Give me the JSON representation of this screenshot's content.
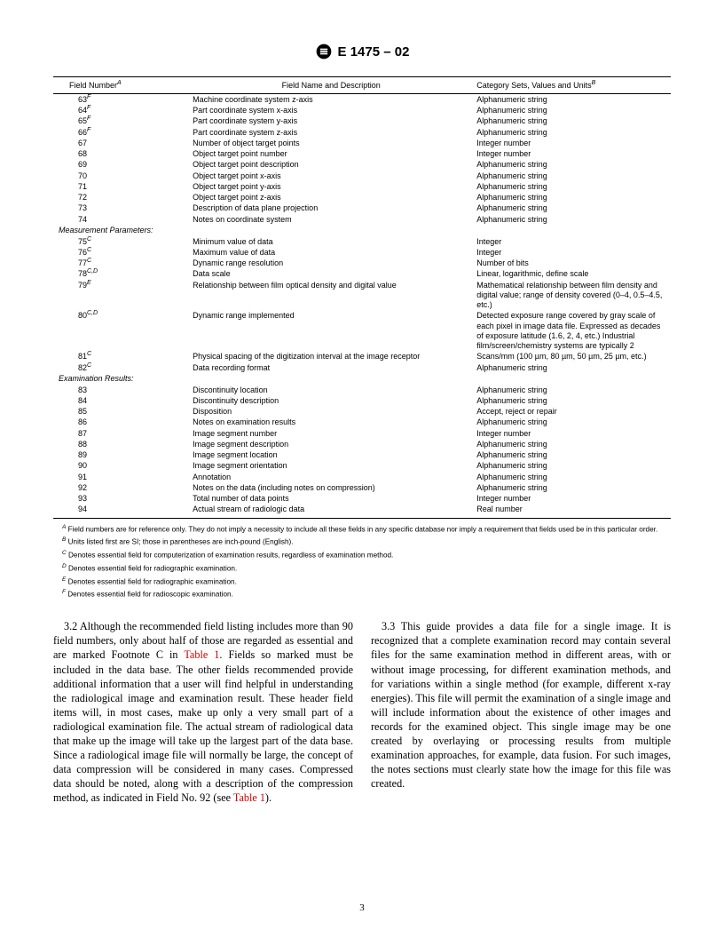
{
  "header": {
    "standard": "E 1475 – 02"
  },
  "table": {
    "headers": {
      "col1": "Field Number",
      "col1_sup": "A",
      "col2": "Field Name and Description",
      "col3": "Category Sets, Values and Units",
      "col3_sup": "B"
    },
    "rows": [
      {
        "num": "63",
        "sup": "F",
        "desc": "Machine coordinate system z-axis",
        "cat": "Alphanumeric string"
      },
      {
        "num": "64",
        "sup": "F",
        "desc": "Part coordinate system x-axis",
        "cat": "Alphanumeric string"
      },
      {
        "num": "65",
        "sup": "F",
        "desc": "Part coordinate system y-axis",
        "cat": "Alphanumeric string"
      },
      {
        "num": "66",
        "sup": "F",
        "desc": "Part coordinate system z-axis",
        "cat": "Alphanumeric string"
      },
      {
        "num": "67",
        "desc": "Number of object target points",
        "cat": "Integer number"
      },
      {
        "num": "68",
        "desc": "Object target point number",
        "cat": "Integer number"
      },
      {
        "num": "69",
        "desc": "Object target point description",
        "cat": "Alphanumeric string"
      },
      {
        "num": "70",
        "desc": "Object target point x-axis",
        "cat": "Alphanumeric string"
      },
      {
        "num": "71",
        "desc": "Object target point y-axis",
        "cat": "Alphanumeric string"
      },
      {
        "num": "72",
        "desc": "Object target point z-axis",
        "cat": "Alphanumeric string"
      },
      {
        "num": "73",
        "desc": "Description of data plane projection",
        "cat": "Alphanumeric string"
      },
      {
        "num": "74",
        "desc": "Notes on coordinate system",
        "cat": "Alphanumeric string"
      },
      {
        "section": "Measurement Parameters:"
      },
      {
        "num": "75",
        "sup": "C",
        "desc": "Minimum value of data",
        "cat": "Integer"
      },
      {
        "num": "76",
        "sup": "C",
        "desc": "Maximum value of data",
        "cat": "Integer"
      },
      {
        "num": "77",
        "sup": "C",
        "desc": "Dynamic range resolution",
        "cat": "Number of bits"
      },
      {
        "num": "78",
        "sup": "C,D",
        "desc": "Data scale",
        "cat": "Linear, logarithmic, define scale"
      },
      {
        "num": "79",
        "sup": "E",
        "desc": "Relationship between film optical density and digital value",
        "cat": "Mathematical relationship between film density and digital value; range of density covered (0–4, 0.5–4.5, etc.)"
      },
      {
        "num": "80",
        "sup": "C,D",
        "desc": "Dynamic range implemented",
        "cat": "Detected exposure range covered by gray scale of each pixel in image data file. Expressed as decades of exposure latitude (1.6, 2, 4, etc.) Industrial film/screen/chemistry systems are typically 2"
      },
      {
        "num": "81",
        "sup": "C",
        "desc": "Physical spacing of the digitization interval at the image receptor",
        "cat": "Scans/mm (100 µm, 80 µm, 50 µm, 25 µm, etc.)"
      },
      {
        "num": "82",
        "sup": "C",
        "desc": "Data recording format",
        "cat": "Alphanumeric string"
      },
      {
        "section": "Examination Results:"
      },
      {
        "num": "83",
        "desc": "Discontinuity location",
        "cat": "Alphanumeric string"
      },
      {
        "num": "84",
        "desc": "Discontinuity description",
        "cat": "Alphanumeric string"
      },
      {
        "num": "85",
        "desc": "Disposition",
        "cat": "Accept, reject or repair"
      },
      {
        "num": "86",
        "desc": "Notes on examination results",
        "cat": "Alphanumeric string"
      },
      {
        "num": "87",
        "desc": "Image segment number",
        "cat": "Integer number"
      },
      {
        "num": "88",
        "desc": "Image segment description",
        "cat": "Alphanumeric string"
      },
      {
        "num": "89",
        "desc": "Image segment location",
        "cat": "Alphanumeric string"
      },
      {
        "num": "90",
        "desc": "Image segment orientation",
        "cat": "Alphanumeric string"
      },
      {
        "num": "91",
        "desc": "Annotation",
        "cat": "Alphanumeric string"
      },
      {
        "num": "92",
        "desc": "Notes on the data (including notes on compression)",
        "cat": "Alphanumeric string"
      },
      {
        "num": "93",
        "desc": "Total number of data points",
        "cat": "Integer number"
      },
      {
        "num": "94",
        "desc": "Actual stream of radiologic data",
        "cat": "Real number"
      }
    ]
  },
  "footnotes": [
    {
      "sup": "A",
      "text": "Field numbers are for reference only. They do not imply a necessity to include all these fields in any specific database nor imply a requirement that fields used be in this particular order."
    },
    {
      "sup": "B",
      "text": "Units listed first are SI; those in parentheses are inch-pound (English)."
    },
    {
      "sup": "C",
      "text": "Denotes essential field for computerization of examination results, regardless of examination method."
    },
    {
      "sup": "D",
      "text": "Denotes essential field for radiographic examination."
    },
    {
      "sup": "E",
      "text": "Denotes essential field for radiographic examination."
    },
    {
      "sup": "F",
      "text": "Denotes essential field for radioscopic examination."
    }
  ],
  "body": {
    "p32_lead": "3.2 Although the recommended field listing includes more than 90 field numbers, only about half of those are regarded as essential and are marked Footnote C in ",
    "p32_link1": "Table 1",
    "p32_mid": ". Fields so marked must be included in the data base. The other fields recommended provide additional information that a user will find helpful in understanding the radiological image and examination result. These header field items will, in most cases, make up only a very small part of a radiological examination file. The actual stream of radiological data that make up the image will take up the largest part of the data base. Since a radiological image file will normally be large, the concept of data compression will be considered in many cases. Compressed data should be noted, along with a description of the compression method, as indicated in Field No. 92 (see ",
    "p32_link2": "Table 1",
    "p32_end": ").",
    "p33": "3.3 This guide provides a data file for a single image. It is recognized that a complete examination record may contain several files for the same examination method in different areas, with or without image processing, for different examination methods, and for variations within a single method (for example, different x-ray energies). This file will permit the examination of a single image and will include information about the existence of other images and records for the examined object. This single image may be one created by overlaying or processing results from multiple examination approaches, for example, data fusion. For such images, the notes sections must clearly state how the image for this file was created."
  },
  "page_number": "3"
}
